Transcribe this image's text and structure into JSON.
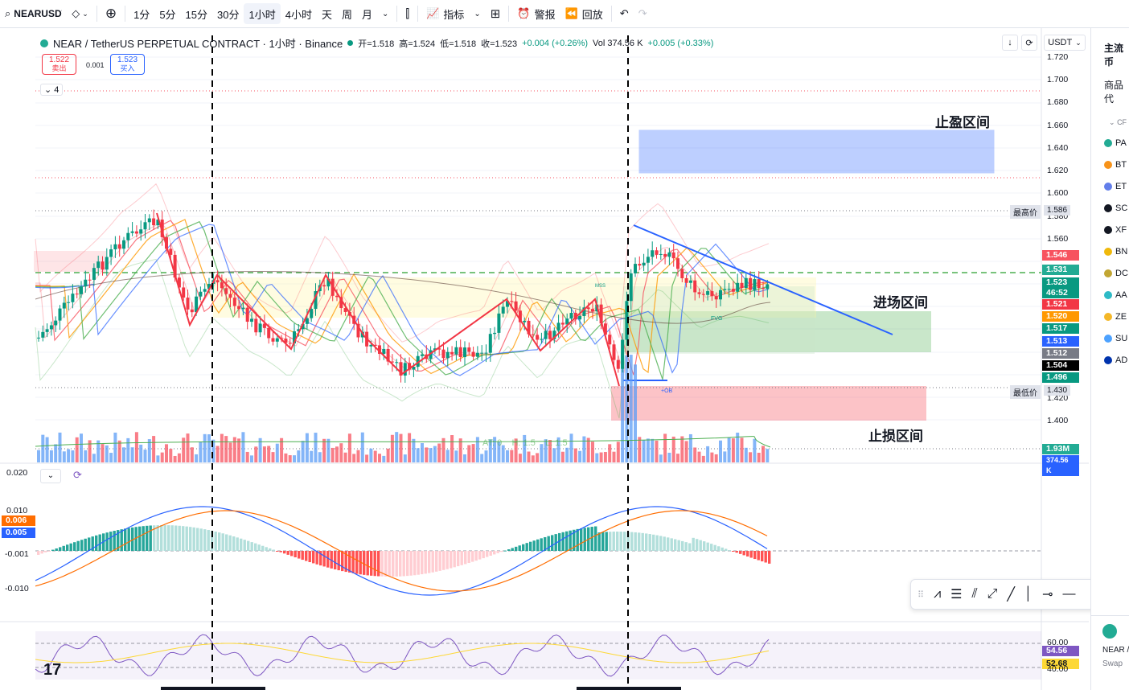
{
  "toolbar": {
    "symbol": "NEARUSDT",
    "intervals": [
      "1分",
      "5分",
      "15分",
      "30分",
      "1小时",
      "4小时",
      "天",
      "周",
      "月"
    ],
    "active_interval": "1小时",
    "indicators_label": "指标",
    "alerts_label": "警报",
    "replay_label": "回放"
  },
  "legend": {
    "title": "NEAR / TetherUS PERPETUAL CONTRACT · 1小时 · Binance",
    "open": "开=1.518",
    "high": "高=1.524",
    "low": "低=1.518",
    "close": "收=1.523",
    "change": "+0.004 (+0.26%)",
    "vol": "Vol 374.56 K",
    "vol_change": "+0.005 (+0.33%)"
  },
  "order": {
    "sell_price": "1.522",
    "sell_label": "卖出",
    "spread": "0.001",
    "buy_price": "1.523",
    "buy_label": "买入"
  },
  "collapse_count": "4",
  "currency": "USDT",
  "price_axis": {
    "ticks": [
      "1.720",
      "1.700",
      "1.680",
      "1.660",
      "1.640",
      "1.620",
      "1.600",
      "1.580",
      "1.560",
      "1.420",
      "1.400"
    ],
    "high_label": "最高价",
    "high_value": "1.586",
    "low_label": "最低价",
    "low_value": "1.430",
    "price_tags": [
      {
        "value": "1.546",
        "color": "#f7525f"
      },
      {
        "value": "1.531",
        "color": "#22ab94"
      },
      {
        "value": "1.523",
        "color": "#089981"
      },
      {
        "value": "46:52",
        "color": "#089981"
      },
      {
        "value": "1.521",
        "color": "#f23645"
      },
      {
        "value": "1.520",
        "color": "#ff9800"
      },
      {
        "value": "1.517",
        "color": "#089981"
      },
      {
        "value": "1.513",
        "color": "#2962ff"
      },
      {
        "value": "1.512",
        "color": "#787b86"
      },
      {
        "value": "1.504",
        "color": "#000000"
      },
      {
        "value": "1.496",
        "color": "#089981"
      }
    ],
    "volume_tag": "1.93M",
    "volume_tag2": "374.56 K"
  },
  "annotations": {
    "take_profit": "止盈区间",
    "entry": "进场区间",
    "stop_loss": "止损区间",
    "mss": "MSS",
    "fvg": "FVG",
    "ob": "+OB",
    "vol_labels": "AT: 0    H: 1.5    L: 1.5"
  },
  "macd_axis": {
    "ticks": [
      "0.020",
      "0.010",
      "-0.001",
      "-0.010"
    ],
    "tag_orange": "0.006",
    "tag_blue": "0.005"
  },
  "rsi_axis": {
    "ticks": [
      "60.00",
      "40.00"
    ],
    "tag_purple": "54.56",
    "tag_yellow": "52.68"
  },
  "sidebar": {
    "header": "主流币",
    "tab": "商品代",
    "group": "CF",
    "items": [
      {
        "code": "PA",
        "color": "#22ab94"
      },
      {
        "code": "BT",
        "color": "#f7931a"
      },
      {
        "code": "ET",
        "color": "#627eea"
      },
      {
        "code": "SC",
        "color": "#131722"
      },
      {
        "code": "XF",
        "color": "#131722"
      },
      {
        "code": "BN",
        "color": "#f0b90b"
      },
      {
        "code": "DC",
        "color": "#c2a633"
      },
      {
        "code": "AA",
        "color": "#2ebac6"
      },
      {
        "code": "ZE",
        "color": "#f4b728"
      },
      {
        "code": "SU",
        "color": "#4da2ff"
      },
      {
        "code": "AD",
        "color": "#0033ad"
      }
    ],
    "footer_name": "NEAR /",
    "footer_type": "Swap"
  },
  "colors": {
    "up": "#089981",
    "down": "#f23645",
    "accent": "#2962ff"
  }
}
